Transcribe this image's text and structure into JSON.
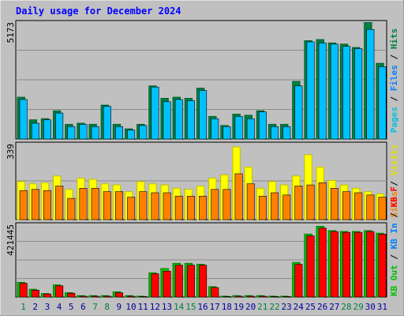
{
  "title": "Daily usage for December 2024",
  "colors": {
    "frame": "#c0c0c0",
    "plot": "#c0c0c0",
    "grid": "#8c8c8c",
    "title": "#0000ff",
    "hits": "#008040",
    "files": "#00c0ff",
    "pages": "#00e0ff",
    "visits": "#ffff00",
    "sites": "#ff8000",
    "kbin": "#00c000",
    "kbout": "#ff0000",
    "weekend_label": "#008040",
    "weekday_label": "#0000a0"
  },
  "chart_data": [
    {
      "type": "bar",
      "name": "hits-files-pages",
      "ymax_label": "5173",
      "ylim": [
        0,
        5173
      ],
      "side_labels": [
        {
          "text": "Pages",
          "color": "#00c0e0"
        },
        {
          "text": " / ",
          "color": "#000000"
        },
        {
          "text": "Files",
          "color": "#0080ff"
        },
        {
          "text": " / ",
          "color": "#000000"
        },
        {
          "text": "Hits",
          "color": "#008040"
        }
      ],
      "categories": [
        "1",
        "2",
        "3",
        "4",
        "5",
        "6",
        "7",
        "8",
        "9",
        "10",
        "11",
        "12",
        "13",
        "14",
        "15",
        "16",
        "17",
        "18",
        "19",
        "20",
        "21",
        "22",
        "23",
        "24",
        "25",
        "26",
        "27",
        "28",
        "29",
        "30",
        "31"
      ],
      "series": [
        {
          "name": "Hits",
          "values": [
            1850,
            850,
            900,
            1250,
            650,
            700,
            650,
            1500,
            650,
            450,
            650,
            2350,
            1800,
            1850,
            1800,
            2250,
            1000,
            600,
            1100,
            1050,
            1250,
            650,
            650,
            2550,
            4350,
            4400,
            4250,
            4200,
            4050,
            5150,
            3350
          ]
        },
        {
          "name": "Files",
          "values": [
            1750,
            700,
            850,
            1150,
            550,
            650,
            550,
            1450,
            550,
            400,
            600,
            2300,
            1650,
            1750,
            1700,
            2150,
            900,
            550,
            1000,
            900,
            1200,
            550,
            550,
            2350,
            4300,
            4250,
            4200,
            4100,
            4000,
            4850,
            3200
          ]
        },
        {
          "name": "Pages",
          "values": [
            0,
            0,
            0,
            0,
            0,
            0,
            0,
            0,
            0,
            0,
            0,
            0,
            0,
            0,
            0,
            0,
            0,
            0,
            0,
            0,
            0,
            0,
            0,
            0,
            0,
            0,
            0,
            0,
            0,
            0,
            0
          ]
        }
      ],
      "weekends": [
        1,
        7,
        8,
        14,
        15,
        21,
        22,
        28,
        29
      ]
    },
    {
      "type": "bar",
      "name": "visits-sites",
      "ymax_label": "339",
      "ylim": [
        0,
        339
      ],
      "side_labels": [
        {
          "text": "Sites",
          "color": "#ff8000"
        },
        {
          "text": " / ",
          "color": "#000000"
        },
        {
          "text": "Visits",
          "color": "#e0e000"
        }
      ],
      "series": [
        {
          "name": "Visits",
          "values": [
            170,
            160,
            165,
            195,
            135,
            185,
            180,
            160,
            155,
            125,
            170,
            160,
            155,
            140,
            135,
            150,
            185,
            200,
            325,
            235,
            140,
            170,
            155,
            195,
            290,
            235,
            175,
            155,
            140,
            125,
            115
          ]
        },
        {
          "name": "Sites",
          "values": [
            130,
            135,
            130,
            150,
            95,
            140,
            140,
            125,
            125,
            100,
            125,
            120,
            120,
            105,
            105,
            105,
            135,
            135,
            205,
            160,
            105,
            120,
            110,
            150,
            155,
            165,
            140,
            125,
            120,
            110,
            100
          ]
        }
      ]
    },
    {
      "type": "bar",
      "name": "kbin-kbout",
      "ymax_label": "421445",
      "ylim": [
        0,
        421445
      ],
      "side_labels": [
        {
          "text": "KB Out",
          "color": "#00c000"
        },
        {
          "text": " / ",
          "color": "#000000"
        },
        {
          "text": "KB In",
          "color": "#0080ff"
        },
        {
          "text": " / ",
          "color": "#000000"
        },
        {
          "text": "KB F",
          "color": "#ff0000"
        }
      ],
      "series": [
        {
          "name": "KB Out",
          "values": [
            85000,
            45000,
            20000,
            70000,
            25000,
            8000,
            8000,
            8000,
            30000,
            8000,
            5000,
            140000,
            165000,
            195000,
            195000,
            190000,
            60000,
            5000,
            8000,
            8000,
            8000,
            5000,
            5000,
            200000,
            365000,
            410000,
            385000,
            380000,
            380000,
            385000,
            370000
          ]
        },
        {
          "name": "KB F",
          "values": [
            80000,
            40000,
            18000,
            65000,
            22000,
            5000,
            5000,
            5000,
            25000,
            5000,
            3000,
            135000,
            150000,
            185000,
            185000,
            185000,
            55000,
            3000,
            5000,
            5000,
            5000,
            3000,
            3000,
            190000,
            355000,
            400000,
            380000,
            375000,
            375000,
            380000,
            365000
          ]
        }
      ]
    }
  ]
}
